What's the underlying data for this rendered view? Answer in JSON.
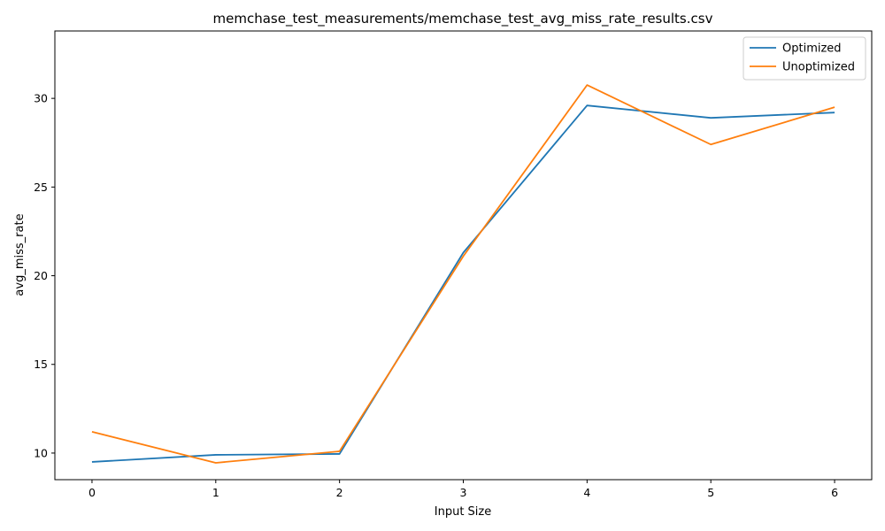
{
  "chart_data": {
    "type": "line",
    "title": "memchase_test_measurements/memchase_test_avg_miss_rate_results.csv",
    "xlabel": "Input Size",
    "ylabel": "avg_miss_rate",
    "x": [
      0,
      1,
      2,
      3,
      4,
      5,
      6
    ],
    "xlim": [
      -0.3,
      6.3
    ],
    "ylim": [
      8.5,
      33.8
    ],
    "xticks": [
      0,
      1,
      2,
      3,
      4,
      5,
      6
    ],
    "yticks": [
      10,
      15,
      20,
      25,
      30
    ],
    "grid": false,
    "legend_position": "top-right",
    "series": [
      {
        "name": "Optimized",
        "color": "#1f77b4",
        "values": [
          9.5,
          9.9,
          9.95,
          21.3,
          29.6,
          28.9,
          29.2
        ]
      },
      {
        "name": "Unoptimized",
        "color": "#ff7f0e",
        "values": [
          11.2,
          9.45,
          10.1,
          21.1,
          30.75,
          27.4,
          29.5
        ]
      }
    ]
  }
}
